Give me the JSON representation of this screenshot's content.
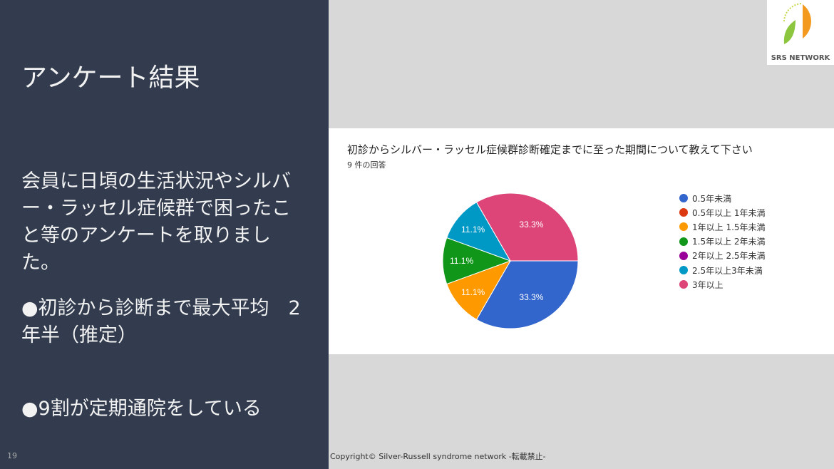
{
  "slide": {
    "title": "アンケート結果",
    "body": "会員に日頃の生活状況やシルバー・ラッセル症候群で困ったこと等のアンケートを取りました。",
    "bullet1": "●初診から診断まで最大平均　2年半（推定）",
    "bullet2": "●9割が定期通院をしている",
    "page_number": "19",
    "footer": "Copyright© Silver-Russell syndrome network  -転載禁止-",
    "logo_text": "SRS NETWORK"
  },
  "chart_data": {
    "type": "pie",
    "title": "初診からシルバー・ラッセル症候群診断確定までに至った期間について教えて下さい",
    "subtitle": "9 件の回答",
    "legend_position": "right",
    "slices": [
      {
        "label": "0.5年未満",
        "value": 3,
        "percent_label": "33.3%",
        "color": "#3366cc"
      },
      {
        "label": "0.5年以上 1年未満",
        "value": 0,
        "percent_label": "",
        "color": "#dc3912"
      },
      {
        "label": "1年以上 1.5年未満",
        "value": 1,
        "percent_label": "11.1%",
        "color": "#ff9900"
      },
      {
        "label": "1.5年以上 2年未満",
        "value": 1,
        "percent_label": "11.1%",
        "color": "#109618"
      },
      {
        "label": "2年以上 2.5年未満",
        "value": 0,
        "percent_label": "",
        "color": "#990099"
      },
      {
        "label": "2.5年以上3年未満",
        "value": 1,
        "percent_label": "11.1%",
        "color": "#0099c6"
      },
      {
        "label": "3年以上",
        "value": 3,
        "percent_label": "33.3%",
        "color": "#dd4477"
      }
    ]
  }
}
